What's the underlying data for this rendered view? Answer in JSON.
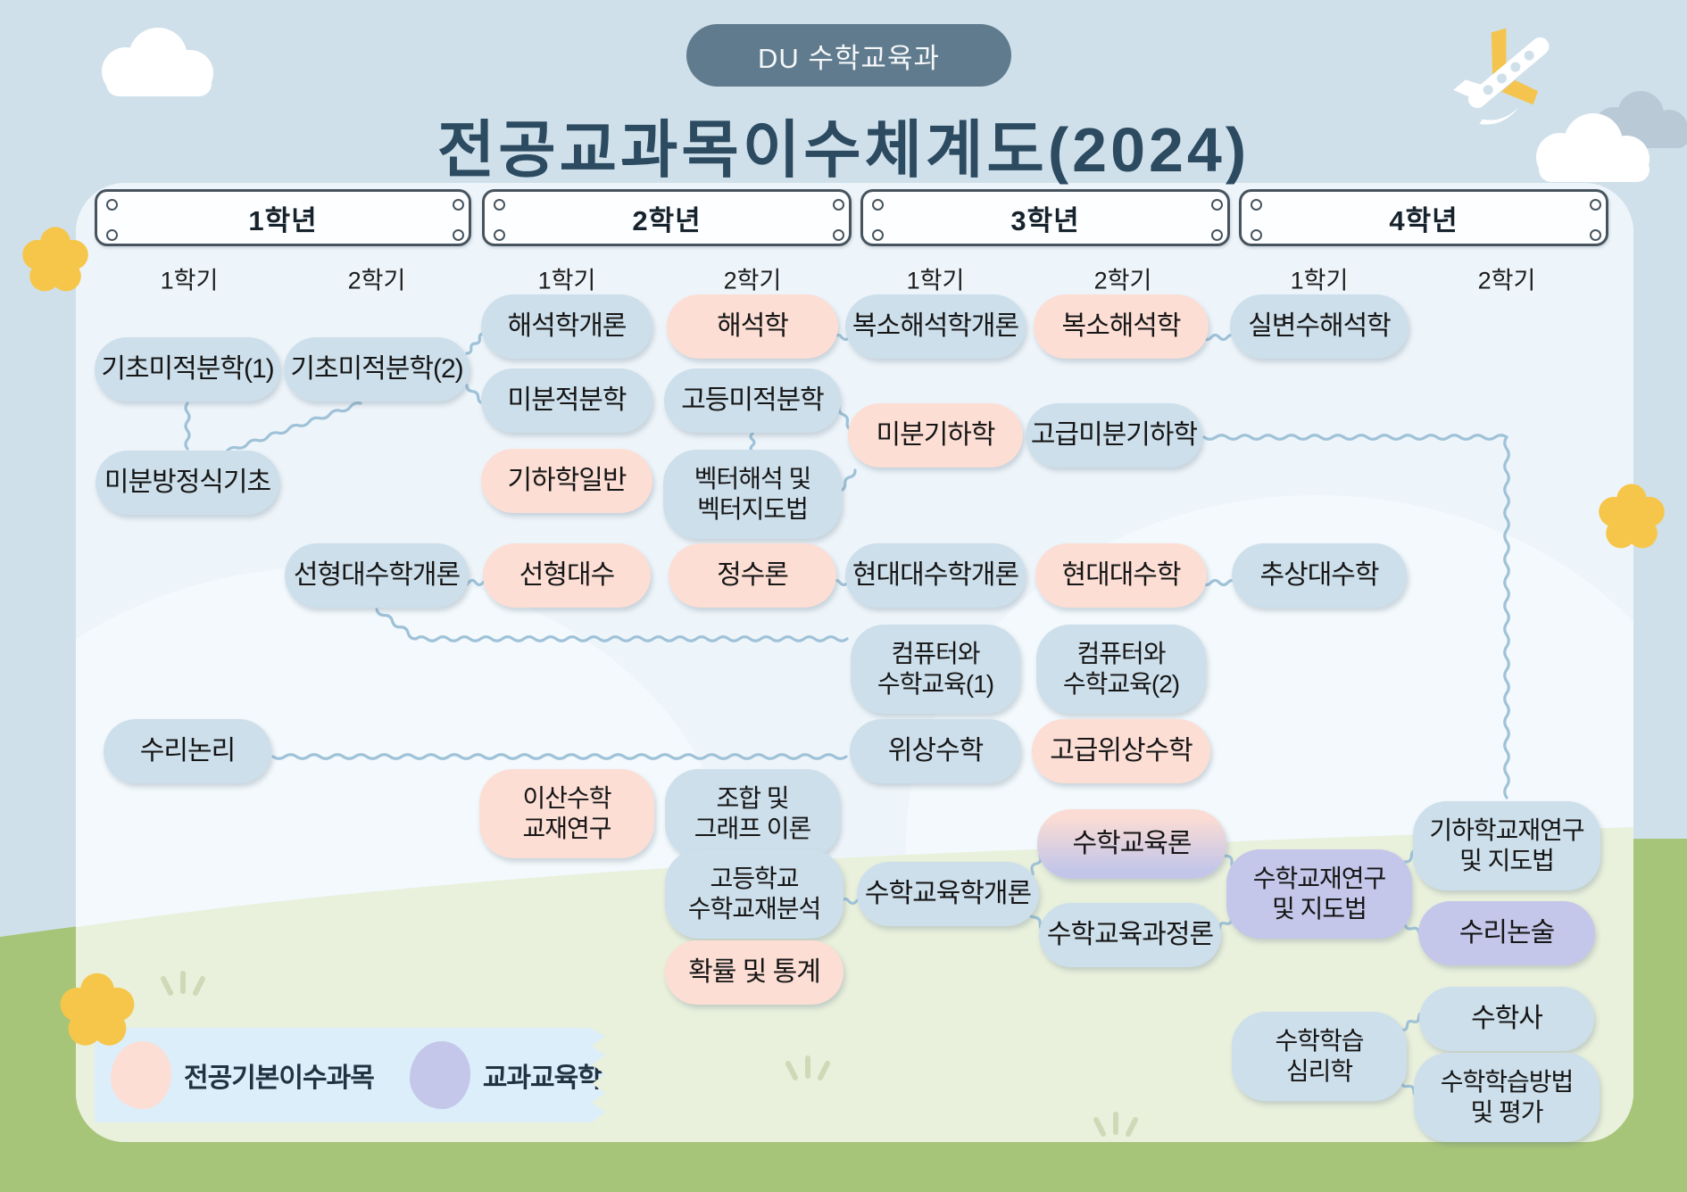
{
  "badge": "DU 수학교육과",
  "title": "전공교과목이수체계도(2024)",
  "years": [
    {
      "label": "1학년",
      "semesters": [
        "1학기",
        "2학기"
      ]
    },
    {
      "label": "2학년",
      "semesters": [
        "1학기",
        "2학기"
      ]
    },
    {
      "label": "3학년",
      "semesters": [
        "1학기",
        "2학기"
      ]
    },
    {
      "label": "4학년",
      "semesters": [
        "1학기",
        "2학기"
      ]
    }
  ],
  "legend": [
    {
      "type": "required",
      "label": "전공기본이수과목",
      "color": "#fcded5"
    },
    {
      "type": "pedagogy",
      "label": "교과교육학",
      "color": "#c4c7e9"
    }
  ],
  "colors": {
    "basic_bubble": "#cddfeb",
    "required_bubble": "#fcded5",
    "pedagogy_bubble": "#c4c7e9",
    "title_text": "#2c4a60",
    "badge_bg": "#607b8d",
    "wire": "#9fc2d8",
    "sky": "#cfe0ea",
    "panel": "#eef5fa",
    "panel_grass": "#e9f0dc",
    "grass": "#a7c578"
  },
  "courses": [
    {
      "id": "calc1",
      "label": "기초미적분학(1)",
      "year": 1,
      "semester": 1,
      "type": "basic"
    },
    {
      "id": "diffeq",
      "label": "미분방정식기초",
      "year": 1,
      "semester": 1,
      "type": "basic"
    },
    {
      "id": "logic",
      "label": "수리논리",
      "year": 1,
      "semester": 1,
      "type": "basic"
    },
    {
      "id": "calc2",
      "label": "기초미적분학(2)",
      "year": 1,
      "semester": 2,
      "type": "basic"
    },
    {
      "id": "linintro",
      "label": "선형대수학개론",
      "year": 1,
      "semester": 2,
      "type": "basic"
    },
    {
      "id": "analintro",
      "label": "해석학개론",
      "year": 2,
      "semester": 1,
      "type": "basic"
    },
    {
      "id": "calculus",
      "label": "미분적분학",
      "year": 2,
      "semester": 1,
      "type": "basic"
    },
    {
      "id": "geogen",
      "label": "기하학일반",
      "year": 2,
      "semester": 1,
      "type": "required"
    },
    {
      "id": "linalg",
      "label": "선형대수",
      "year": 2,
      "semester": 1,
      "type": "required"
    },
    {
      "id": "discrete",
      "label": "이산수학\n교재연구",
      "year": 2,
      "semester": 1,
      "type": "required"
    },
    {
      "id": "analysis",
      "label": "해석학",
      "year": 2,
      "semester": 2,
      "type": "required"
    },
    {
      "id": "advcalc",
      "label": "고등미적분학",
      "year": 2,
      "semester": 2,
      "type": "basic"
    },
    {
      "id": "vector",
      "label": "벡터해석 및\n벡터지도법",
      "year": 2,
      "semester": 2,
      "type": "basic"
    },
    {
      "id": "number",
      "label": "정수론",
      "year": 2,
      "semester": 2,
      "type": "required"
    },
    {
      "id": "combin",
      "label": "조합 및\n그래프 이론",
      "year": 2,
      "semester": 2,
      "type": "basic"
    },
    {
      "id": "hsmat",
      "label": "고등학교\n수학교재분석",
      "year": 2,
      "semester": 2,
      "type": "basic"
    },
    {
      "id": "prob",
      "label": "확률 및 통계",
      "year": 2,
      "semester": 2,
      "type": "required"
    },
    {
      "id": "cplxintro",
      "label": "복소해석학개론",
      "year": 3,
      "semester": 1,
      "type": "basic"
    },
    {
      "id": "diffgeo",
      "label": "미분기하학",
      "year": 3,
      "semester": 1,
      "type": "required"
    },
    {
      "id": "algintro",
      "label": "현대대수학개론",
      "year": 3,
      "semester": 1,
      "type": "basic"
    },
    {
      "id": "comp1",
      "label": "컴퓨터와\n수학교육(1)",
      "year": 3,
      "semester": 1,
      "type": "basic"
    },
    {
      "id": "topology",
      "label": "위상수학",
      "year": 3,
      "semester": 1,
      "type": "basic"
    },
    {
      "id": "eduintro",
      "label": "수학교육학개론",
      "year": 3,
      "semester": 1,
      "type": "basic"
    },
    {
      "id": "cplx",
      "label": "복소해석학",
      "year": 3,
      "semester": 2,
      "type": "required"
    },
    {
      "id": "advdiffgeo",
      "label": "고급미분기하학",
      "year": 3,
      "semester": 2,
      "type": "basic"
    },
    {
      "id": "modalg",
      "label": "현대대수학",
      "year": 3,
      "semester": 2,
      "type": "required"
    },
    {
      "id": "comp2",
      "label": "컴퓨터와\n수학교육(2)",
      "year": 3,
      "semester": 2,
      "type": "basic"
    },
    {
      "id": "advtopo",
      "label": "고급위상수학",
      "year": 3,
      "semester": 2,
      "type": "required"
    },
    {
      "id": "edutheory",
      "label": "수학교육론",
      "year": 3,
      "semester": 2,
      "type": "mixed"
    },
    {
      "id": "educurr",
      "label": "수학교육과정론",
      "year": 3,
      "semester": 2,
      "type": "basic"
    },
    {
      "id": "realvar",
      "label": "실변수해석학",
      "year": 4,
      "semester": 1,
      "type": "basic"
    },
    {
      "id": "abstalg",
      "label": "추상대수학",
      "year": 4,
      "semester": 1,
      "type": "basic"
    },
    {
      "id": "matstudy",
      "label": "수학교재연구\n및 지도법",
      "year": 4,
      "semester": 1,
      "type": "pedagogy"
    },
    {
      "id": "psych",
      "label": "수학학습\n심리학",
      "year": 4,
      "semester": 1,
      "type": "basic"
    },
    {
      "id": "geomat",
      "label": "기하학교재연구\n및 지도법",
      "year": 4,
      "semester": 2,
      "type": "basic"
    },
    {
      "id": "essay",
      "label": "수리논술",
      "year": 4,
      "semester": 2,
      "type": "pedagogy"
    },
    {
      "id": "history",
      "label": "수학사",
      "year": 4,
      "semester": 2,
      "type": "basic"
    },
    {
      "id": "method",
      "label": "수학학습방법\n및 평가",
      "year": 4,
      "semester": 2,
      "type": "basic"
    }
  ],
  "connections": [
    {
      "from": "calc1",
      "to": "diffeq"
    },
    {
      "from": "calc2",
      "to": "diffeq"
    },
    {
      "from": "calc2",
      "to": "analintro"
    },
    {
      "from": "calc2",
      "to": "calculus"
    },
    {
      "from": "analysis",
      "to": "cplxintro"
    },
    {
      "from": "cplx",
      "to": "realvar"
    },
    {
      "from": "advcalc",
      "to": "vector"
    },
    {
      "from": "advcalc",
      "to": "diffgeo"
    },
    {
      "from": "vector",
      "to": "diffgeo"
    },
    {
      "from": "advdiffgeo",
      "to": "geomat"
    },
    {
      "from": "linintro",
      "to": "linalg"
    },
    {
      "from": "linintro",
      "to": "comp1"
    },
    {
      "from": "number",
      "to": "algintro"
    },
    {
      "from": "modalg",
      "to": "abstalg"
    },
    {
      "from": "logic",
      "to": "topology"
    },
    {
      "from": "hsmat",
      "to": "eduintro"
    },
    {
      "from": "eduintro",
      "to": "edutheory"
    },
    {
      "from": "eduintro",
      "to": "educurr"
    },
    {
      "from": "edutheory",
      "to": "matstudy"
    },
    {
      "from": "educurr",
      "to": "matstudy"
    },
    {
      "from": "matstudy",
      "to": "geomat"
    },
    {
      "from": "matstudy",
      "to": "essay"
    },
    {
      "from": "psych",
      "to": "history"
    },
    {
      "from": "psych",
      "to": "method"
    }
  ]
}
